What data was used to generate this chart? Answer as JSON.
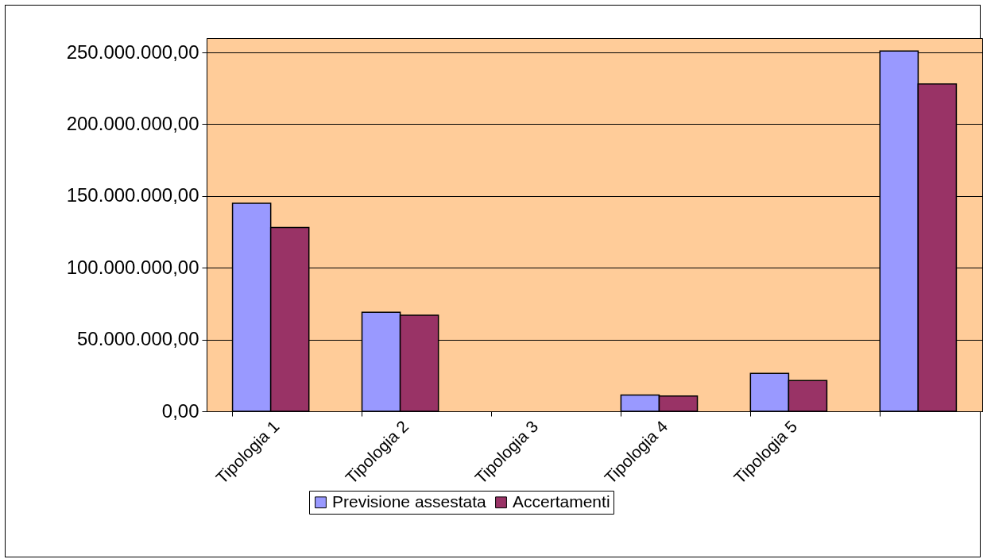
{
  "chart_data": {
    "type": "bar",
    "categories": [
      "Tipologia 1",
      "Tipologia 2",
      "Tipologia 3",
      "Tipologia 4",
      "Tipologia 5",
      null
    ],
    "series": [
      {
        "name": "Previsione assestata",
        "color": "#9999ff",
        "values": [
          145000000,
          69000000,
          0,
          11400000,
          26400000,
          251000000
        ]
      },
      {
        "name": "Accertamenti",
        "color": "#993366",
        "values": [
          128000000,
          67000000,
          0,
          10600000,
          21500000,
          228000000
        ]
      }
    ],
    "ylim": [
      0,
      260000000
    ],
    "yticks": [
      {
        "value": 0,
        "label": "0,00"
      },
      {
        "value": 50000000,
        "label": "50.000.000,00"
      },
      {
        "value": 100000000,
        "label": "100.000.000,00"
      },
      {
        "value": 150000000,
        "label": "150.000.000,00"
      },
      {
        "value": 200000000,
        "label": "200.000.000,00"
      },
      {
        "value": 250000000,
        "label": "250.000.000,00"
      }
    ],
    "grid": "y",
    "legend": "bottom"
  }
}
